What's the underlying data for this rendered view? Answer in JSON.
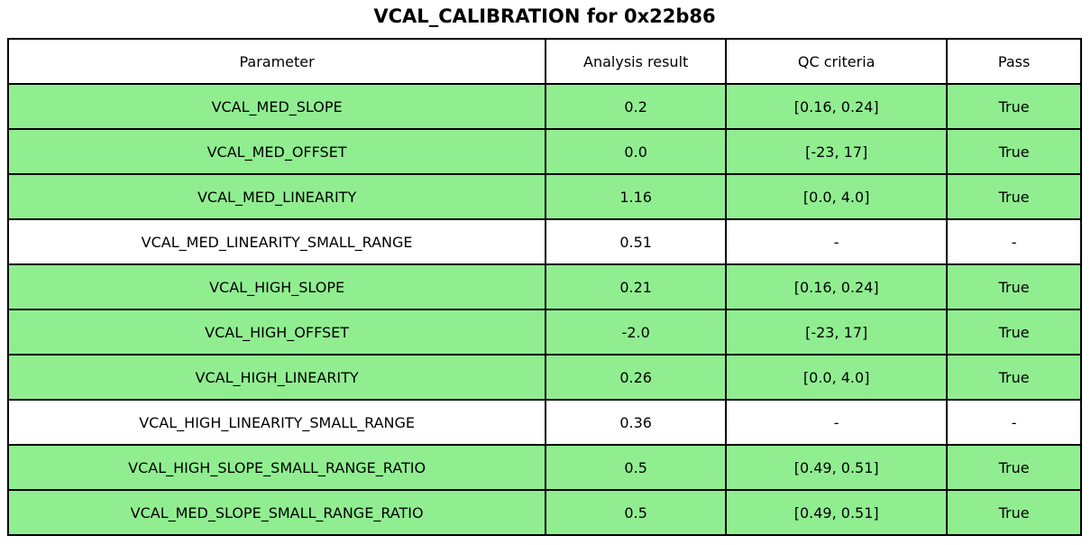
{
  "chart_data": {
    "type": "table",
    "title": "VCAL_CALIBRATION for 0x22b86",
    "columns": [
      "Parameter",
      "Analysis result",
      "QC criteria",
      "Pass"
    ],
    "rows": [
      {
        "parameter": "VCAL_MED_SLOPE",
        "result": "0.2",
        "criteria": "[0.16, 0.24]",
        "pass": "True",
        "highlight": true
      },
      {
        "parameter": "VCAL_MED_OFFSET",
        "result": "0.0",
        "criteria": "[-23, 17]",
        "pass": "True",
        "highlight": true
      },
      {
        "parameter": "VCAL_MED_LINEARITY",
        "result": "1.16",
        "criteria": "[0.0, 4.0]",
        "pass": "True",
        "highlight": true
      },
      {
        "parameter": "VCAL_MED_LINEARITY_SMALL_RANGE",
        "result": "0.51",
        "criteria": "-",
        "pass": "-",
        "highlight": false
      },
      {
        "parameter": "VCAL_HIGH_SLOPE",
        "result": "0.21",
        "criteria": "[0.16, 0.24]",
        "pass": "True",
        "highlight": true
      },
      {
        "parameter": "VCAL_HIGH_OFFSET",
        "result": "-2.0",
        "criteria": "[-23, 17]",
        "pass": "True",
        "highlight": true
      },
      {
        "parameter": "VCAL_HIGH_LINEARITY",
        "result": "0.26",
        "criteria": "[0.0, 4.0]",
        "pass": "True",
        "highlight": true
      },
      {
        "parameter": "VCAL_HIGH_LINEARITY_SMALL_RANGE",
        "result": "0.36",
        "criteria": "-",
        "pass": "-",
        "highlight": false
      },
      {
        "parameter": "VCAL_HIGH_SLOPE_SMALL_RANGE_RATIO",
        "result": "0.5",
        "criteria": "[0.49, 0.51]",
        "pass": "True",
        "highlight": true
      },
      {
        "parameter": "VCAL_MED_SLOPE_SMALL_RANGE_RATIO",
        "result": "0.5",
        "criteria": "[0.49, 0.51]",
        "pass": "True",
        "highlight": true
      }
    ],
    "layout": {
      "grid": true,
      "legend": "none"
    }
  },
  "colors": {
    "pass_row": "#90EE90",
    "neutral_row": "#FFFFFF",
    "header_row": "#FFFFFF",
    "border": "#000000",
    "text": "#000000"
  }
}
